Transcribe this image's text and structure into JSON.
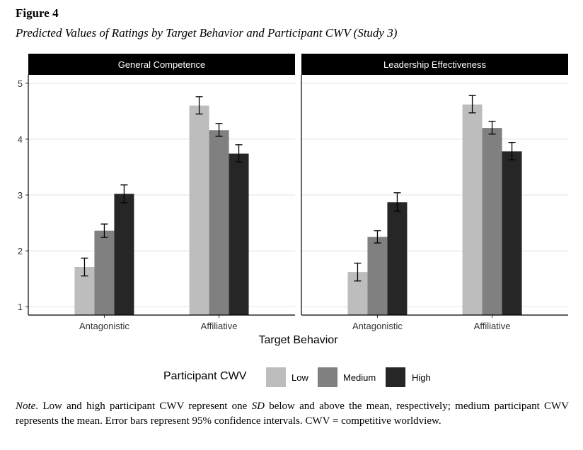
{
  "figure": {
    "label": "Figure 4",
    "title": "Predicted Values of Ratings by Target Behavior and Participant CWV (Study 3)"
  },
  "note": {
    "label": "Note",
    "text_1": ".   Low and high participant CWV represent one ",
    "sd": "SD",
    "text_2": " below and above the mean, respectively; medium participant CWV represents the mean. Error bars represent 95% confidence intervals. CWV = competitive worldview."
  },
  "chart_data": {
    "type": "bar",
    "facets": [
      {
        "title": "General Competence",
        "categories": [
          "Antagonistic",
          "Affiliative"
        ],
        "series": [
          {
            "name": "Low",
            "values": [
              1.71,
              4.6
            ],
            "ci_low": [
              1.55,
              4.45
            ],
            "ci_high": [
              1.87,
              4.76
            ]
          },
          {
            "name": "Medium",
            "values": [
              2.36,
              4.16
            ],
            "ci_low": [
              2.24,
              4.05
            ],
            "ci_high": [
              2.48,
              4.28
            ]
          },
          {
            "name": "High",
            "values": [
              3.02,
              3.74
            ],
            "ci_low": [
              2.86,
              3.59
            ],
            "ci_high": [
              3.18,
              3.9
            ]
          }
        ]
      },
      {
        "title": "Leadership Effectiveness",
        "categories": [
          "Antagonistic",
          "Affiliative"
        ],
        "series": [
          {
            "name": "Low",
            "values": [
              1.62,
              4.62
            ],
            "ci_low": [
              1.46,
              4.47
            ],
            "ci_high": [
              1.78,
              4.78
            ]
          },
          {
            "name": "Medium",
            "values": [
              2.25,
              4.2
            ],
            "ci_low": [
              2.14,
              4.09
            ],
            "ci_high": [
              2.36,
              4.32
            ]
          },
          {
            "name": "High",
            "values": [
              2.87,
              3.78
            ],
            "ci_low": [
              2.71,
              3.63
            ],
            "ci_high": [
              3.04,
              3.94
            ]
          }
        ]
      }
    ],
    "series_colors": {
      "Low": "#bdbdbd",
      "Medium": "#808080",
      "High": "#262626"
    },
    "xlabel": "Target Behavior",
    "ylabel": "",
    "ylim": [
      0.85,
      5.15
    ],
    "yticks": [
      1,
      2,
      3,
      4,
      5
    ],
    "legend_title": "Participant CWV",
    "legend_position": "bottom",
    "grid": true
  }
}
